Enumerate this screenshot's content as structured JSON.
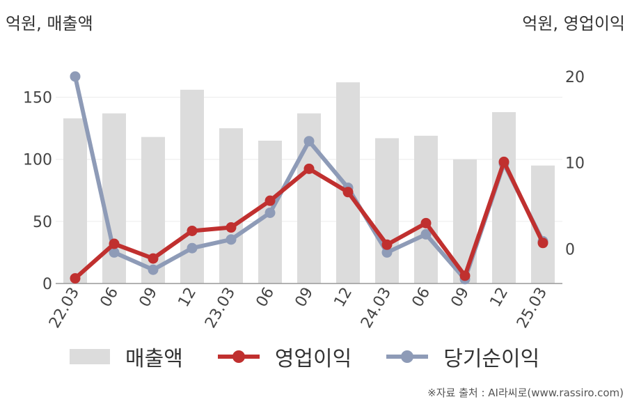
{
  "units": {
    "left": "억원, 매출액",
    "right": "억원, 영업이익"
  },
  "legend": {
    "revenue": "매출액",
    "operating_profit": "영업이익",
    "net_income": "당기순이익"
  },
  "source": "※자료 출처 : AI라씨로(www.rassiro.com)",
  "colors": {
    "revenue": "#dcdcdc",
    "operating_profit": "#c0302f",
    "net_income": "#8e9bb7"
  },
  "chart_data": {
    "type": "bar",
    "categories": [
      "22.03",
      "06",
      "09",
      "12",
      "23.03",
      "06",
      "09",
      "12",
      "24.03",
      "06",
      "09",
      "12",
      "25.03"
    ],
    "left_axis": {
      "ylim": [
        0,
        175
      ],
      "ticks": [
        0,
        50,
        100,
        150
      ]
    },
    "right_axis": {
      "ylim": [
        -4,
        21.2
      ],
      "ticks": [
        0,
        10,
        20
      ]
    },
    "series": [
      {
        "name": "매출액",
        "type": "bar",
        "axis": "left",
        "values": [
          133,
          137,
          118,
          156,
          125,
          115,
          137,
          162,
          117,
          119,
          100,
          138,
          95
        ]
      },
      {
        "name": "영업이익",
        "type": "line",
        "axis": "right",
        "values": [
          -3.4,
          0.6,
          -1.1,
          2.1,
          2.5,
          5.6,
          9.3,
          6.6,
          0.5,
          3.0,
          -3.1,
          10.1,
          0.7
        ]
      },
      {
        "name": "당기순이익",
        "type": "line",
        "axis": "right",
        "values": [
          20.0,
          -0.4,
          -2.4,
          0.1,
          1.1,
          4.2,
          12.5,
          7.1,
          -0.4,
          1.7,
          -3.5,
          9.9,
          0.9
        ]
      }
    ],
    "grid": true,
    "legend_position": "bottom"
  }
}
